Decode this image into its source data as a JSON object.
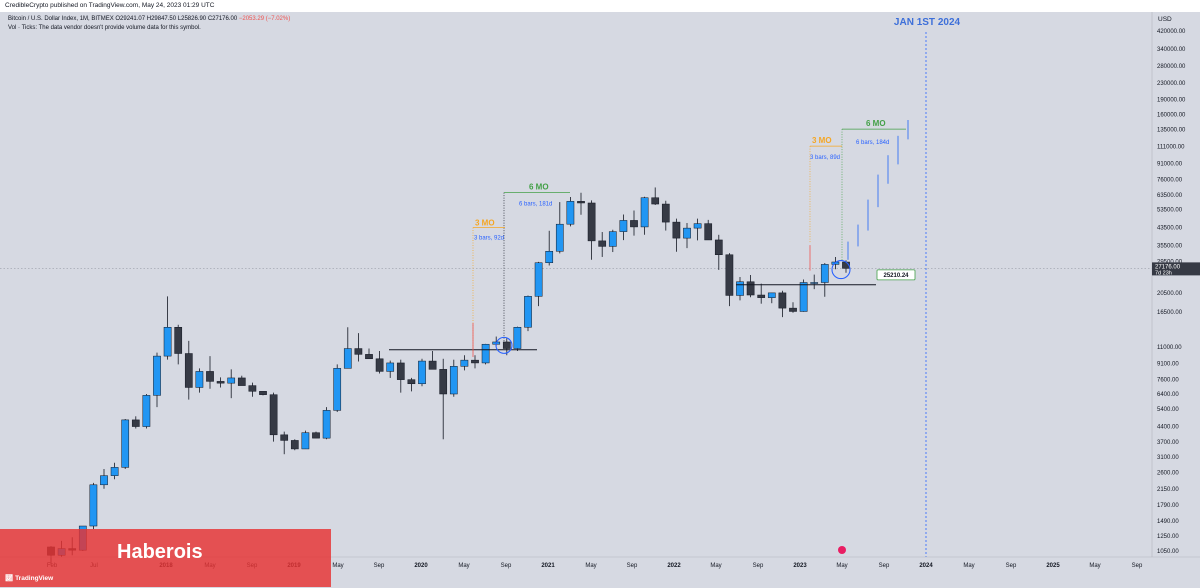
{
  "header": {
    "published": "CredibleCrypto published on TradingView.com, May 24, 2023 01:29 UTC"
  },
  "legend": {
    "symbol": "Bitcoin / U.S. Dollar Index, 1M, BITMEX",
    "open": "O29241.07",
    "high": "H29847.50",
    "low": "L25826.90",
    "close": "C27176.00",
    "change": "−2053.29 (−7.02%)",
    "volume_note": "Vol · Ticks: The data vendor doesn't provide volume data for this symbol."
  },
  "chart_data": {
    "type": "candlestick",
    "currency": "USD",
    "scale": "log",
    "ylim": [
      980,
      520000
    ],
    "x_ticks": [
      "Feb",
      "Jul",
      "2018",
      "May",
      "Sep",
      "2019",
      "May",
      "Sep",
      "2020",
      "May",
      "Sep",
      "2021",
      "May",
      "Sep",
      "2022",
      "May",
      "Sep",
      "2023",
      "May",
      "Sep",
      "2024",
      "May",
      "Sep",
      "2025",
      "May",
      "Sep"
    ],
    "y_ticks": [
      "420000.00",
      "340000.00",
      "280000.00",
      "230000.00",
      "190000.00",
      "160000.00",
      "135000.00",
      "111000.00",
      "91000.00",
      "76000.00",
      "63500.00",
      "53500.00",
      "43500.00",
      "35500.00",
      "29500.00",
      "20500.00",
      "16500.00",
      "11000.00",
      "9100.00",
      "7600.00",
      "6400.00",
      "5400.00",
      "4400.00",
      "3700.00",
      "3100.00",
      "2600.00",
      "2150.00",
      "1790.00",
      "1490.00",
      "1250.00",
      "1050.00"
    ],
    "current_price": "27176.00",
    "current_countdown": "7d 23h",
    "candles": [
      [
        1100,
        1110,
        900,
        1000
      ],
      [
        1000,
        1180,
        980,
        1080
      ],
      [
        1080,
        1230,
        1000,
        1060
      ],
      [
        1060,
        1400,
        1050,
        1400
      ],
      [
        1400,
        2300,
        1350,
        2250
      ],
      [
        2250,
        2700,
        2150,
        2500
      ],
      [
        2500,
        2900,
        2400,
        2750
      ],
      [
        2750,
        4800,
        2700,
        4750
      ],
      [
        4750,
        4950,
        4300,
        4400
      ],
      [
        4400,
        6400,
        4300,
        6300
      ],
      [
        6300,
        10300,
        5500,
        9900
      ],
      [
        9900,
        19700,
        9500,
        13800
      ],
      [
        13800,
        14200,
        9000,
        10200
      ],
      [
        10200,
        11800,
        6000,
        6900
      ],
      [
        6900,
        8600,
        6500,
        8300
      ],
      [
        8300,
        9900,
        6800,
        7400
      ],
      [
        7400,
        7750,
        6900,
        7250
      ],
      [
        7250,
        8500,
        6100,
        7700
      ],
      [
        7700,
        7900,
        7100,
        7050
      ],
      [
        7050,
        7300,
        6200,
        6600
      ],
      [
        6600,
        6550,
        6300,
        6350
      ],
      [
        6350,
        6500,
        3700,
        4000
      ],
      [
        4000,
        4150,
        3200,
        3750
      ],
      [
        3750,
        3800,
        3350,
        3400
      ],
      [
        3400,
        4200,
        3400,
        4100
      ],
      [
        4100,
        4150,
        3850,
        3850
      ],
      [
        3850,
        5500,
        3800,
        5300
      ],
      [
        5300,
        9000,
        5200,
        8600
      ],
      [
        8600,
        13800,
        8600,
        10800
      ],
      [
        10800,
        12900,
        9300,
        10100
      ],
      [
        10100,
        10800,
        9800,
        9600
      ],
      [
        9600,
        10500,
        8100,
        8300
      ],
      [
        8300,
        9400,
        7700,
        9150
      ],
      [
        9150,
        9500,
        6500,
        7550
      ],
      [
        7550,
        7700,
        6600,
        7200
      ],
      [
        7200,
        9600,
        7000,
        9350
      ],
      [
        9350,
        10500,
        8600,
        8500
      ],
      [
        8500,
        9600,
        3800,
        6400
      ],
      [
        6400,
        9500,
        6200,
        8800
      ],
      [
        8800,
        10000,
        8400,
        9450
      ],
      [
        9450,
        10000,
        8600,
        9150
      ],
      [
        9150,
        11400,
        9000,
        11350
      ],
      [
        11350,
        12400,
        11100,
        11650
      ],
      [
        11650,
        12150,
        10000,
        10800
      ],
      [
        10800,
        13900,
        10500,
        13800
      ],
      [
        13800,
        19900,
        13200,
        19700
      ],
      [
        19700,
        29300,
        17600,
        29000
      ],
      [
        29000,
        41900,
        28100,
        33100
      ],
      [
        33100,
        58300,
        32300,
        45200
      ],
      [
        45200,
        61800,
        44100,
        58800
      ],
      [
        58800,
        64900,
        50400,
        57700
      ],
      [
        57700,
        59500,
        30000,
        37300
      ],
      [
        37300,
        41300,
        31000,
        35000
      ],
      [
        35000,
        42400,
        32800,
        41500
      ],
      [
        41500,
        50500,
        37600,
        47200
      ],
      [
        47200,
        52900,
        39600,
        43800
      ],
      [
        43800,
        62000,
        40000,
        61300
      ],
      [
        61300,
        69000,
        56400,
        57000
      ],
      [
        57000,
        59200,
        42000,
        46300
      ],
      [
        46300,
        48200,
        32900,
        38500
      ],
      [
        38500,
        45800,
        34300,
        43200
      ],
      [
        43200,
        48200,
        37500,
        45500
      ],
      [
        45500,
        47500,
        37700,
        37700
      ],
      [
        37700,
        40000,
        26700,
        31800
      ],
      [
        31800,
        32400,
        17600,
        19900
      ],
      [
        19900,
        24600,
        18800,
        23300
      ],
      [
        23300,
        25200,
        19500,
        20000
      ],
      [
        20000,
        22800,
        18100,
        19400
      ],
      [
        19400,
        20500,
        18200,
        20500
      ],
      [
        20500,
        21000,
        15500,
        17200
      ],
      [
        17200,
        18400,
        16300,
        16550
      ],
      [
        16550,
        23900,
        16500,
        23100
      ],
      [
        23100,
        25300,
        21400,
        23100
      ],
      [
        23100,
        28900,
        19600,
        28450
      ],
      [
        28450,
        31000,
        26900,
        29250
      ],
      [
        29241,
        29848,
        25827,
        27176
      ]
    ],
    "annotations": {
      "title_right": "JAN 1ST 2024",
      "label_3mo_1": "3 MO",
      "label_6mo_1": "6 MO",
      "bars_3mo_1": "3 bars, 92d",
      "bars_6mo_1": "6 bars, 181d",
      "label_3mo_2": "3 MO",
      "label_6mo_2": "6 MO",
      "bars_3mo_2": "3 bars, 89d",
      "bars_6mo_2": "6 bars, 184d",
      "level_label": "25210.24"
    }
  },
  "colors": {
    "background": "#d6d9e2",
    "up": "#2196f3",
    "down": "#363a45",
    "orange": "#f5a623",
    "green": "#43a047",
    "blue_title": "#2962ff",
    "red": "#ef5350"
  },
  "watermark": {
    "text": "Haberois",
    "logo": "TradingView"
  }
}
